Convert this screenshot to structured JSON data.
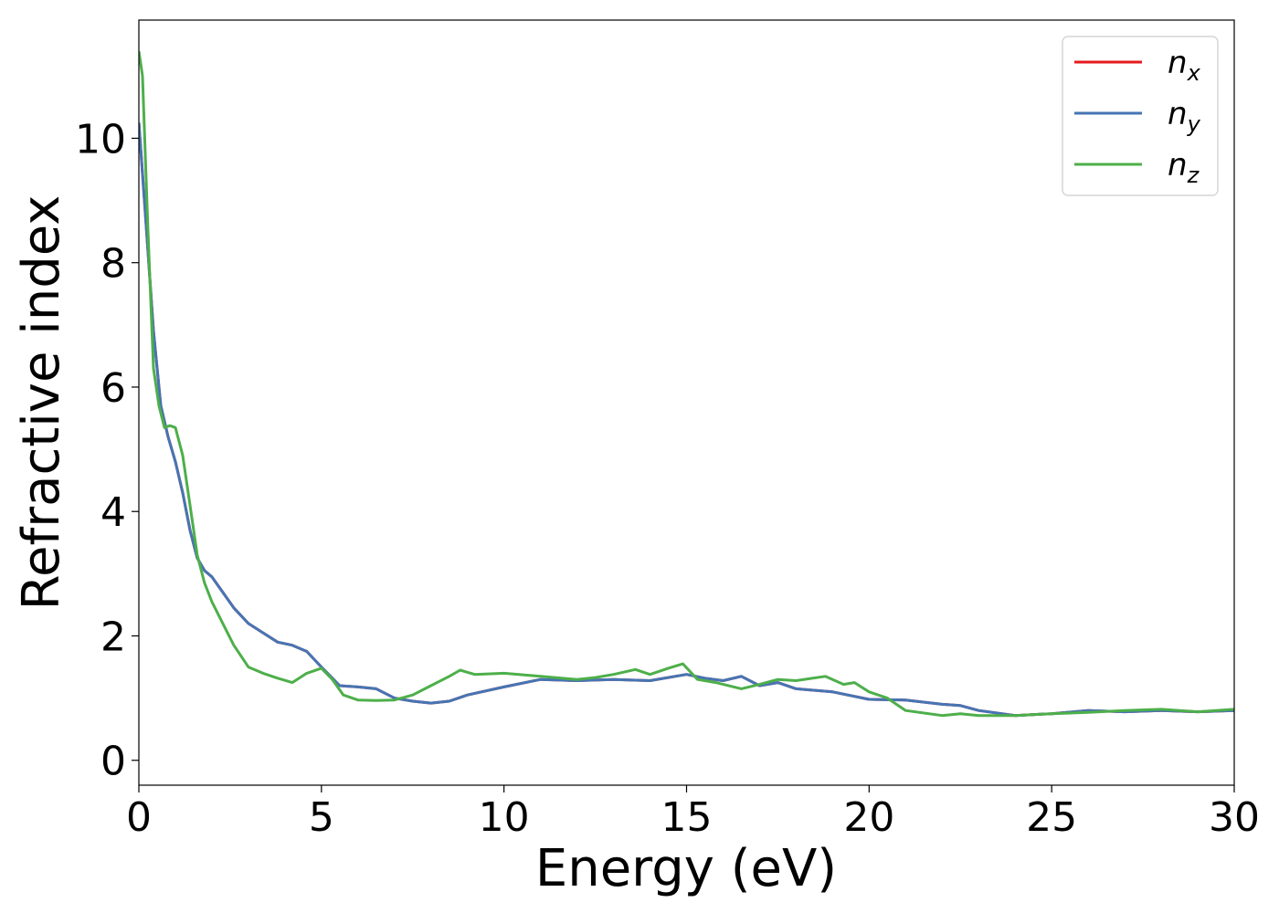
{
  "chart_data": {
    "type": "line",
    "title": "",
    "xlabel": "Energy (eV)",
    "ylabel": "Refractive index",
    "xlim": [
      0,
      30
    ],
    "ylim": [
      -0.4,
      11.9
    ],
    "xticks": [
      0,
      5,
      10,
      15,
      20,
      25,
      30
    ],
    "yticks": [
      0,
      2,
      4,
      6,
      8,
      10
    ],
    "grid": false,
    "legend_position": "top-right",
    "series": [
      {
        "name": "n",
        "subscript": "x",
        "color": "#e41a1c",
        "x": [
          0,
          0.2,
          0.4,
          0.6,
          0.8,
          1.0,
          1.2,
          1.4,
          1.6,
          1.8,
          2.0,
          2.3,
          2.6,
          3.0,
          3.4,
          3.8,
          4.2,
          4.6,
          5.0,
          5.5,
          6.0,
          6.5,
          7.0,
          7.5,
          8.0,
          8.5,
          9.0,
          10.0,
          11.0,
          12.0,
          13.0,
          14.0,
          15.0,
          15.5,
          16.0,
          16.5,
          17.0,
          17.5,
          18.0,
          19.0,
          20.0,
          21.0,
          22.0,
          22.5,
          23.0,
          24.0,
          25.0,
          26.0,
          27.0,
          28.0,
          29.0,
          30.0
        ],
        "values": [
          10.25,
          8.6,
          6.9,
          5.7,
          5.2,
          4.8,
          4.3,
          3.7,
          3.25,
          3.05,
          2.95,
          2.7,
          2.45,
          2.2,
          2.05,
          1.9,
          1.85,
          1.75,
          1.5,
          1.2,
          1.18,
          1.15,
          1.0,
          0.95,
          0.92,
          0.95,
          1.05,
          1.18,
          1.3,
          1.28,
          1.3,
          1.28,
          1.38,
          1.32,
          1.28,
          1.35,
          1.2,
          1.25,
          1.15,
          1.1,
          0.98,
          0.97,
          0.9,
          0.88,
          0.8,
          0.72,
          0.75,
          0.8,
          0.78,
          0.8,
          0.78,
          0.8
        ]
      },
      {
        "name": "n",
        "subscript": "y",
        "color": "#4575b4",
        "x": [
          0,
          0.2,
          0.4,
          0.6,
          0.8,
          1.0,
          1.2,
          1.4,
          1.6,
          1.8,
          2.0,
          2.3,
          2.6,
          3.0,
          3.4,
          3.8,
          4.2,
          4.6,
          5.0,
          5.5,
          6.0,
          6.5,
          7.0,
          7.5,
          8.0,
          8.5,
          9.0,
          10.0,
          11.0,
          12.0,
          13.0,
          14.0,
          15.0,
          15.5,
          16.0,
          16.5,
          17.0,
          17.5,
          18.0,
          19.0,
          20.0,
          21.0,
          22.0,
          22.5,
          23.0,
          24.0,
          25.0,
          26.0,
          27.0,
          28.0,
          29.0,
          30.0
        ],
        "values": [
          10.25,
          8.6,
          6.9,
          5.7,
          5.2,
          4.8,
          4.3,
          3.7,
          3.25,
          3.05,
          2.95,
          2.7,
          2.45,
          2.2,
          2.05,
          1.9,
          1.85,
          1.75,
          1.5,
          1.2,
          1.18,
          1.15,
          1.0,
          0.95,
          0.92,
          0.95,
          1.05,
          1.18,
          1.3,
          1.28,
          1.3,
          1.28,
          1.38,
          1.32,
          1.28,
          1.35,
          1.2,
          1.25,
          1.15,
          1.1,
          0.98,
          0.97,
          0.9,
          0.88,
          0.8,
          0.72,
          0.75,
          0.8,
          0.78,
          0.8,
          0.78,
          0.8
        ]
      },
      {
        "name": "n",
        "subscript": "z",
        "color": "#4daf4a",
        "x": [
          0,
          0.1,
          0.25,
          0.4,
          0.55,
          0.7,
          0.85,
          1.0,
          1.2,
          1.4,
          1.6,
          1.8,
          2.0,
          2.3,
          2.6,
          3.0,
          3.4,
          3.8,
          4.2,
          4.6,
          5.0,
          5.3,
          5.6,
          6.0,
          6.5,
          7.0,
          7.5,
          8.0,
          8.5,
          8.8,
          9.2,
          10.0,
          11.0,
          12.0,
          12.5,
          13.0,
          13.6,
          14.0,
          14.5,
          14.9,
          15.3,
          15.8,
          16.5,
          17.0,
          17.5,
          18.0,
          18.8,
          19.3,
          19.6,
          20.0,
          20.5,
          21.0,
          22.0,
          22.5,
          23.0,
          24.0,
          25.0,
          26.0,
          27.0,
          28.0,
          29.0,
          30.0
        ],
        "values": [
          11.4,
          11.0,
          8.5,
          6.3,
          5.7,
          5.35,
          5.38,
          5.35,
          4.9,
          4.1,
          3.3,
          2.85,
          2.55,
          2.2,
          1.85,
          1.5,
          1.4,
          1.32,
          1.25,
          1.4,
          1.48,
          1.3,
          1.05,
          0.97,
          0.96,
          0.97,
          1.05,
          1.2,
          1.35,
          1.45,
          1.38,
          1.4,
          1.35,
          1.3,
          1.33,
          1.38,
          1.46,
          1.38,
          1.48,
          1.55,
          1.3,
          1.25,
          1.15,
          1.22,
          1.3,
          1.28,
          1.35,
          1.22,
          1.25,
          1.1,
          1.0,
          0.8,
          0.72,
          0.75,
          0.72,
          0.72,
          0.75,
          0.77,
          0.8,
          0.82,
          0.78,
          0.82
        ]
      }
    ]
  }
}
